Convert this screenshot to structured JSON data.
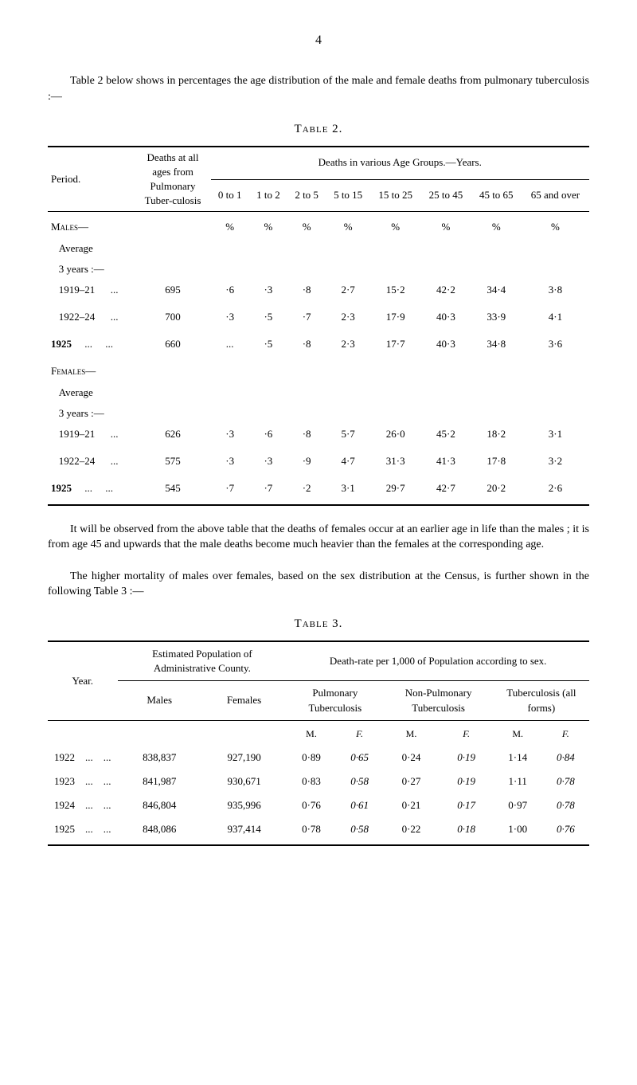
{
  "page_number": "4",
  "intro": "Table 2 below shows in percentages the age distribution of the male and female deaths from pulmonary tuberculosis :—",
  "table2": {
    "label": "Table 2.",
    "columns": {
      "period": "Period.",
      "deaths_all": "Deaths at all ages from Pulmonary Tuber-culosis",
      "group_header": "Deaths in various Age Groups.—Years.",
      "ages": [
        "0 to 1",
        "1 to 2",
        "2 to 5",
        "5 to 15",
        "15 to 25",
        "25 to 45",
        "45 to 65",
        "65 and over"
      ]
    },
    "rows": [
      {
        "label": "Males—",
        "deaths": "",
        "vals": [
          "%",
          "%",
          "%",
          "%",
          "%",
          "%",
          "%",
          "%"
        ],
        "class": "smallcaps"
      },
      {
        "label": "   Average",
        "deaths": "",
        "vals": [
          "",
          "",
          "",
          "",
          "",
          "",
          "",
          ""
        ]
      },
      {
        "label": "   3 years :—",
        "deaths": "",
        "vals": [
          "",
          "",
          "",
          "",
          "",
          "",
          "",
          ""
        ]
      },
      {
        "label": "   1919–21      ...",
        "deaths": "695",
        "vals": [
          "·6",
          "·3",
          "·8",
          "2·7",
          "15·2",
          "42·2",
          "34·4",
          "3·8"
        ]
      },
      {
        "label": "",
        "deaths": "",
        "vals": [
          "",
          "",
          "",
          "",
          "",
          "",
          "",
          ""
        ]
      },
      {
        "label": "   1922–24      ...",
        "deaths": "700",
        "vals": [
          "·3",
          "·5",
          "·7",
          "2·3",
          "17·9",
          "40·3",
          "33·9",
          "4·1"
        ]
      },
      {
        "label": "",
        "deaths": "",
        "vals": [
          "",
          "",
          "",
          "",
          "",
          "",
          "",
          ""
        ]
      },
      {
        "label": "1925     ...     ...",
        "deaths": "660",
        "vals": [
          "...",
          "·5",
          "·8",
          "2·3",
          "17·7",
          "40·3",
          "34·8",
          "3·6"
        ],
        "bold": true
      },
      {
        "label": "",
        "deaths": "",
        "vals": [
          "",
          "",
          "",
          "",
          "",
          "",
          "",
          ""
        ]
      },
      {
        "label": "Females—",
        "deaths": "",
        "vals": [
          "",
          "",
          "",
          "",
          "",
          "",
          "",
          ""
        ],
        "class": "smallcaps"
      },
      {
        "label": "   Average",
        "deaths": "",
        "vals": [
          "",
          "",
          "",
          "",
          "",
          "",
          "",
          ""
        ]
      },
      {
        "label": "   3 years :—",
        "deaths": "",
        "vals": [
          "",
          "",
          "",
          "",
          "",
          "",
          "",
          ""
        ]
      },
      {
        "label": "   1919–21      ...",
        "deaths": "626",
        "vals": [
          "·3",
          "·6",
          "·8",
          "5·7",
          "26·0",
          "45·2",
          "18·2",
          "3·1"
        ]
      },
      {
        "label": "",
        "deaths": "",
        "vals": [
          "",
          "",
          "",
          "",
          "",
          "",
          "",
          ""
        ]
      },
      {
        "label": "   1922–24      ...",
        "deaths": "575",
        "vals": [
          "·3",
          "·3",
          "·9",
          "4·7",
          "31·3",
          "41·3",
          "17·8",
          "3·2"
        ]
      },
      {
        "label": "",
        "deaths": "",
        "vals": [
          "",
          "",
          "",
          "",
          "",
          "",
          "",
          ""
        ]
      },
      {
        "label": "1925     ...     ...",
        "deaths": "545",
        "vals": [
          "·7",
          "·7",
          "·2",
          "3·1",
          "29·7",
          "42·7",
          "20·2",
          "2·6"
        ],
        "bold": true
      }
    ]
  },
  "body1": "It will be observed from the above table that the deaths of females occur at an earlier age in life than the males ; it is from age 45 and upwards that the male deaths become much heavier than the females at the corresponding age.",
  "body2": "The higher mortality of males over females, based on the sex distribution at the Census, is further shown in the following Table 3 :—",
  "table3": {
    "label": "Table 3.",
    "columns": {
      "year": "Year.",
      "est_pop": "Estimated Population of Administrative County.",
      "males": "Males",
      "females": "Females",
      "death_rate": "Death-rate per 1,000 of Population according to sex.",
      "pulm": "Pulmonary Tuberculosis",
      "nonpulm": "Non-Pulmonary Tuberculosis",
      "all": "Tuberculosis (all forms)"
    },
    "subhead": {
      "m": "M.",
      "f": "F."
    },
    "rows": [
      {
        "year": "1922    ...    ...",
        "males": "838,837",
        "females": "927,190",
        "pulm_m": "0·89",
        "pulm_f": "0·65",
        "np_m": "0·24",
        "np_f": "0·19",
        "all_m": "1·14",
        "all_f": "0·84"
      },
      {
        "year": "1923    ...    ...",
        "males": "841,987",
        "females": "930,671",
        "pulm_m": "0·83",
        "pulm_f": "0·58",
        "np_m": "0·27",
        "np_f": "0·19",
        "all_m": "1·11",
        "all_f": "0·78"
      },
      {
        "year": "1924    ...    ...",
        "males": "846,804",
        "females": "935,996",
        "pulm_m": "0·76",
        "pulm_f": "0·61",
        "np_m": "0·21",
        "np_f": "0·17",
        "all_m": "0·97",
        "all_f": "0·78"
      },
      {
        "year": "1925    ...    ...",
        "males": "848,086",
        "females": "937,414",
        "pulm_m": "0·78",
        "pulm_f": "0·58",
        "np_m": "0·22",
        "np_f": "0·18",
        "all_m": "1·00",
        "all_f": "0·76"
      }
    ]
  }
}
